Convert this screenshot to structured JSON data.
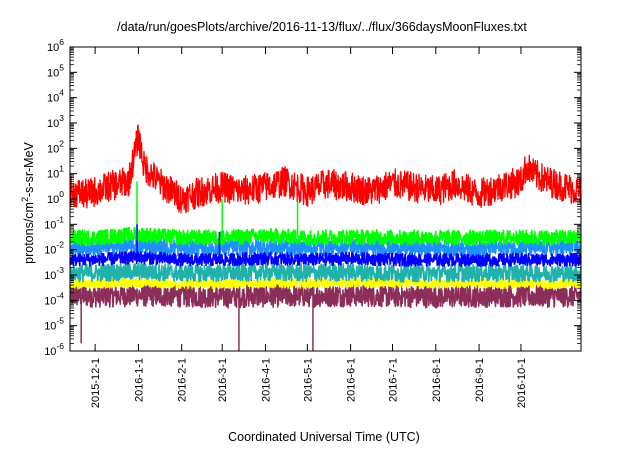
{
  "chart_data": {
    "type": "line",
    "title": "/data/run/goesPlots/archive/2016-11-13/flux/../flux/366daysMoonFluxes.txt",
    "xlabel": "Coordinated Universal Time (UTC)",
    "ylabel_main": "protons/cm",
    "ylabel_sup": "2",
    "ylabel_rest": "-s-sr-MeV",
    "y_scale": "log",
    "ylim": [
      1e-06,
      1000000.0
    ],
    "xlim": [
      "2015-11-13",
      "2016-11-13"
    ],
    "grid": false,
    "legend": "none",
    "y_ticks": [
      {
        "mantissa": "10",
        "exp": "-6",
        "value": -6
      },
      {
        "mantissa": "10",
        "exp": "-5",
        "value": -5
      },
      {
        "mantissa": "10",
        "exp": "-4",
        "value": -4
      },
      {
        "mantissa": "10",
        "exp": "-3",
        "value": -3
      },
      {
        "mantissa": "10",
        "exp": "-2",
        "value": -2
      },
      {
        "mantissa": "10",
        "exp": "-1",
        "value": -1
      },
      {
        "mantissa": "10",
        "exp": "0",
        "value": 0
      },
      {
        "mantissa": "10",
        "exp": "1",
        "value": 1
      },
      {
        "mantissa": "10",
        "exp": "2",
        "value": 2
      },
      {
        "mantissa": "10",
        "exp": "3",
        "value": 3
      },
      {
        "mantissa": "10",
        "exp": "4",
        "value": 4
      },
      {
        "mantissa": "10",
        "exp": "5",
        "value": 5
      },
      {
        "mantissa": "10",
        "exp": "6",
        "value": 6
      }
    ],
    "x_ticks": [
      {
        "label": "2015-12-1",
        "date": "2015-12-01"
      },
      {
        "label": "2016-1-1",
        "date": "2016-01-01"
      },
      {
        "label": "2016-2-1",
        "date": "2016-02-01"
      },
      {
        "label": "2016-3-1",
        "date": "2016-03-01"
      },
      {
        "label": "2016-4-1",
        "date": "2016-04-01"
      },
      {
        "label": "2016-5-1",
        "date": "2016-05-01"
      },
      {
        "label": "2016-6-1",
        "date": "2016-06-01"
      },
      {
        "label": "2016-7-1",
        "date": "2016-07-01"
      },
      {
        "label": "2016-8-1",
        "date": "2016-08-01"
      },
      {
        "label": "2016-9-1",
        "date": "2016-09-01"
      },
      {
        "label": "2016-10-1",
        "date": "2016-10-01"
      }
    ],
    "series": [
      {
        "color": "#8b2e5a",
        "points": [
          [
            "2015-11-13",
            0.00015
          ],
          [
            "2015-12-01",
            0.00015
          ],
          [
            "2016-01-01",
            0.00016
          ],
          [
            "2016-02-01",
            0.00015
          ],
          [
            "2016-03-01",
            0.00014
          ],
          [
            "2016-04-01",
            0.00015
          ],
          [
            "2016-05-01",
            0.00015
          ],
          [
            "2016-06-01",
            0.00016
          ],
          [
            "2016-07-01",
            0.00015
          ],
          [
            "2016-08-01",
            0.00014
          ],
          [
            "2016-09-01",
            0.00015
          ],
          [
            "2016-10-01",
            0.00015
          ],
          [
            "2016-11-13",
            0.00015
          ]
        ],
        "spikes_down": [
          [
            "2015-11-21",
            2e-06
          ],
          [
            "2016-03-13",
            1e-06
          ],
          [
            "2016-05-05",
            1e-06
          ]
        ]
      },
      {
        "color": "#ffff00",
        "points": [
          [
            "2015-11-13",
            0.00045
          ],
          [
            "2015-12-01",
            0.00045
          ],
          [
            "2016-01-01",
            0.0005
          ],
          [
            "2016-02-01",
            0.00045
          ],
          [
            "2016-03-01",
            0.00045
          ],
          [
            "2016-04-01",
            0.00048
          ],
          [
            "2016-05-01",
            0.00046
          ],
          [
            "2016-06-01",
            0.0005
          ],
          [
            "2016-07-01",
            0.00047
          ],
          [
            "2016-08-01",
            0.00045
          ],
          [
            "2016-09-01",
            0.00046
          ],
          [
            "2016-10-01",
            0.00045
          ],
          [
            "2016-11-13",
            0.00045
          ]
        ]
      },
      {
        "color": "#20b2aa",
        "points": [
          [
            "2015-11-13",
            0.0012
          ],
          [
            "2015-12-01",
            0.0012
          ],
          [
            "2016-01-01",
            0.0014
          ],
          [
            "2016-02-01",
            0.0012
          ],
          [
            "2016-03-01",
            0.0012
          ],
          [
            "2016-04-01",
            0.0013
          ],
          [
            "2016-05-01",
            0.0012
          ],
          [
            "2016-06-01",
            0.0013
          ],
          [
            "2016-07-01",
            0.0012
          ],
          [
            "2016-08-01",
            0.0012
          ],
          [
            "2016-09-01",
            0.0012
          ],
          [
            "2016-10-01",
            0.0012
          ],
          [
            "2016-11-13",
            0.0012
          ]
        ]
      },
      {
        "color": "#1e90ff",
        "points": [
          [
            "2015-11-13",
            0.012
          ],
          [
            "2015-12-01",
            0.012
          ],
          [
            "2016-01-01",
            0.014
          ],
          [
            "2016-02-01",
            0.012
          ],
          [
            "2016-03-01",
            0.012
          ],
          [
            "2016-04-01",
            0.013
          ],
          [
            "2016-05-01",
            0.012
          ],
          [
            "2016-06-01",
            0.013
          ],
          [
            "2016-07-01",
            0.012
          ],
          [
            "2016-08-01",
            0.012
          ],
          [
            "2016-09-01",
            0.012
          ],
          [
            "2016-10-01",
            0.012
          ],
          [
            "2016-11-13",
            0.012
          ]
        ]
      },
      {
        "color": "#00ff00",
        "points": [
          [
            "2015-11-13",
            0.03
          ],
          [
            "2015-12-01",
            0.03
          ],
          [
            "2016-01-01",
            0.04
          ],
          [
            "2016-02-01",
            0.03
          ],
          [
            "2016-03-01",
            0.03
          ],
          [
            "2016-04-01",
            0.035
          ],
          [
            "2016-05-01",
            0.03
          ],
          [
            "2016-06-01",
            0.032
          ],
          [
            "2016-07-01",
            0.03
          ],
          [
            "2016-08-01",
            0.03
          ],
          [
            "2016-09-01",
            0.03
          ],
          [
            "2016-10-01",
            0.03
          ],
          [
            "2016-11-13",
            0.03
          ]
        ],
        "spikes_up": [
          [
            "2015-12-31",
            5
          ],
          [
            "2016-03-01",
            1
          ],
          [
            "2016-04-24",
            0.8
          ]
        ]
      },
      {
        "color": "#0000ff",
        "points": [
          [
            "2015-11-13",
            0.004
          ],
          [
            "2015-12-01",
            0.004
          ],
          [
            "2016-01-01",
            0.005
          ],
          [
            "2016-02-01",
            0.004
          ],
          [
            "2016-03-01",
            0.004
          ],
          [
            "2016-04-01",
            0.0045
          ],
          [
            "2016-05-01",
            0.004
          ],
          [
            "2016-06-01",
            0.0045
          ],
          [
            "2016-07-01",
            0.004
          ],
          [
            "2016-08-01",
            0.004
          ],
          [
            "2016-09-01",
            0.004
          ],
          [
            "2016-10-01",
            0.004
          ],
          [
            "2016-11-13",
            0.004
          ]
        ],
        "spikes_up": [
          [
            "2015-12-31",
            0.1
          ],
          [
            "2016-02-28",
            0.05
          ]
        ]
      },
      {
        "color": "#ff0000",
        "points": [
          [
            "2015-11-13",
            2
          ],
          [
            "2015-11-25",
            1.5
          ],
          [
            "2015-12-10",
            3
          ],
          [
            "2015-12-25",
            5
          ],
          [
            "2016-01-01",
            300
          ],
          [
            "2016-01-05",
            20
          ],
          [
            "2016-01-15",
            5
          ],
          [
            "2016-02-01",
            1
          ],
          [
            "2016-02-15",
            2
          ],
          [
            "2016-03-01",
            3
          ],
          [
            "2016-03-15",
            2
          ],
          [
            "2016-04-01",
            3
          ],
          [
            "2016-04-15",
            5
          ],
          [
            "2016-05-01",
            2
          ],
          [
            "2016-05-15",
            4
          ],
          [
            "2016-06-01",
            3
          ],
          [
            "2016-06-15",
            2
          ],
          [
            "2016-07-01",
            4
          ],
          [
            "2016-07-15",
            3
          ],
          [
            "2016-08-01",
            2
          ],
          [
            "2016-08-15",
            4
          ],
          [
            "2016-09-01",
            1.5
          ],
          [
            "2016-09-15",
            3
          ],
          [
            "2016-10-01",
            5
          ],
          [
            "2016-10-05",
            20
          ],
          [
            "2016-10-10",
            10
          ],
          [
            "2016-10-20",
            5
          ],
          [
            "2016-11-01",
            3
          ],
          [
            "2016-11-13",
            2
          ]
        ]
      }
    ]
  }
}
